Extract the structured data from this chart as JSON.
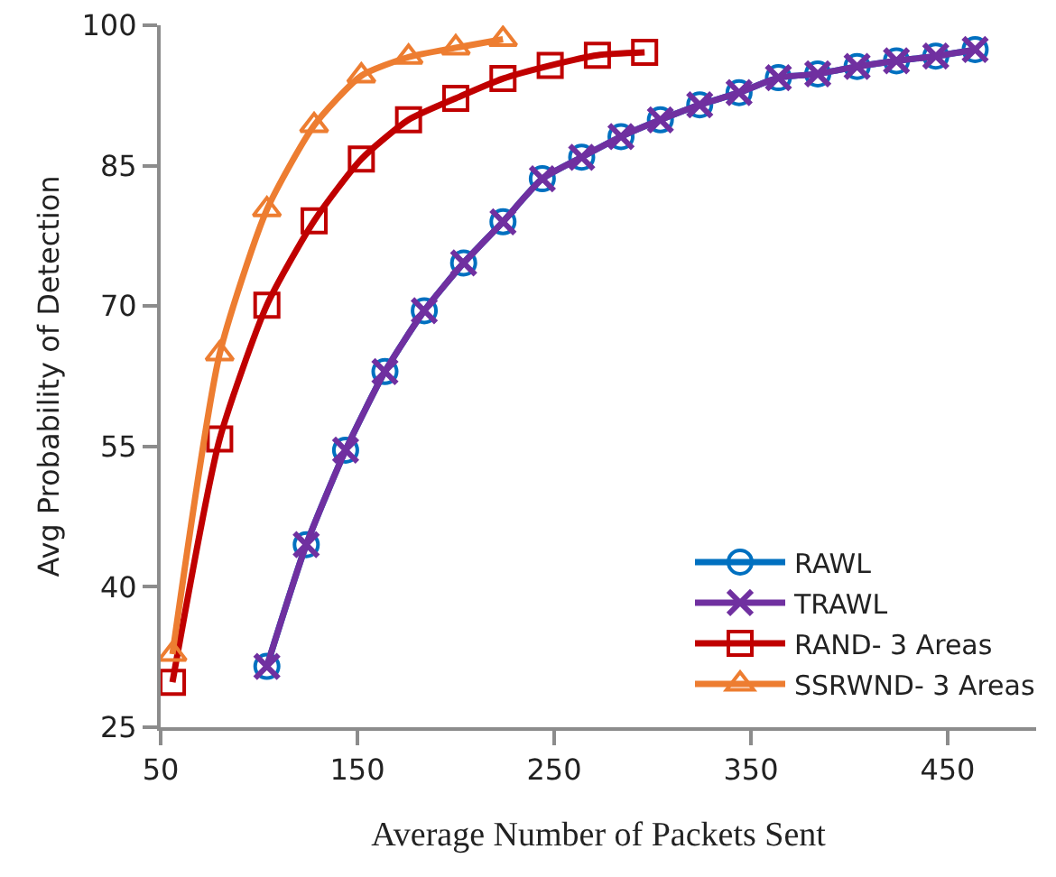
{
  "chart_data": {
    "type": "line",
    "xlabel": "Average Number of Packets Sent",
    "ylabel": "Avg Probability of Detection",
    "xlim": [
      50,
      495
    ],
    "xticks": [
      50,
      150,
      250,
      350,
      450
    ],
    "ylim": [
      25,
      100
    ],
    "yticks": [
      25,
      40,
      55,
      70,
      85,
      100
    ],
    "legend": "bottom right",
    "series": [
      {
        "name": "RAWL",
        "color": "#0070c0",
        "marker": "circle",
        "x": [
          104,
          124,
          144,
          164,
          184,
          204,
          224,
          244,
          264,
          284,
          304,
          324,
          344,
          364,
          384,
          404,
          424,
          444,
          464
        ],
        "values": [
          31.5,
          44.5,
          54.6,
          63.0,
          69.5,
          74.6,
          79.0,
          83.6,
          85.9,
          88.1,
          89.9,
          91.5,
          92.8,
          94.4,
          94.8,
          95.6,
          96.2,
          96.7,
          97.4
        ]
      },
      {
        "name": "TRAWL",
        "color": "#7030a0",
        "marker": "cross",
        "x": [
          104,
          124,
          144,
          164,
          184,
          204,
          224,
          244,
          264,
          284,
          304,
          324,
          344,
          364,
          384,
          404,
          424,
          444,
          464
        ],
        "values": [
          31.5,
          44.5,
          54.6,
          63.0,
          69.5,
          74.6,
          79.0,
          83.6,
          85.9,
          88.1,
          89.9,
          91.5,
          92.8,
          94.4,
          94.8,
          95.6,
          96.2,
          96.7,
          97.4
        ]
      },
      {
        "name": "RAND- 3 Areas",
        "color": "#c00000",
        "marker": "square",
        "x": [
          56,
          80,
          104,
          128,
          152,
          176,
          200,
          224,
          248,
          272,
          296
        ],
        "values": [
          29.8,
          55.8,
          70.1,
          79.1,
          85.7,
          89.9,
          92.2,
          94.3,
          95.7,
          96.8,
          97.1
        ]
      },
      {
        "name": "SSRWND- 3 Areas",
        "color": "#ed7d31",
        "marker": "triangle",
        "x": [
          56,
          80,
          104,
          128,
          152,
          176,
          200,
          224
        ],
        "values": [
          32.8,
          64.9,
          80.3,
          89.3,
          94.6,
          96.6,
          97.6,
          98.5
        ]
      }
    ]
  }
}
